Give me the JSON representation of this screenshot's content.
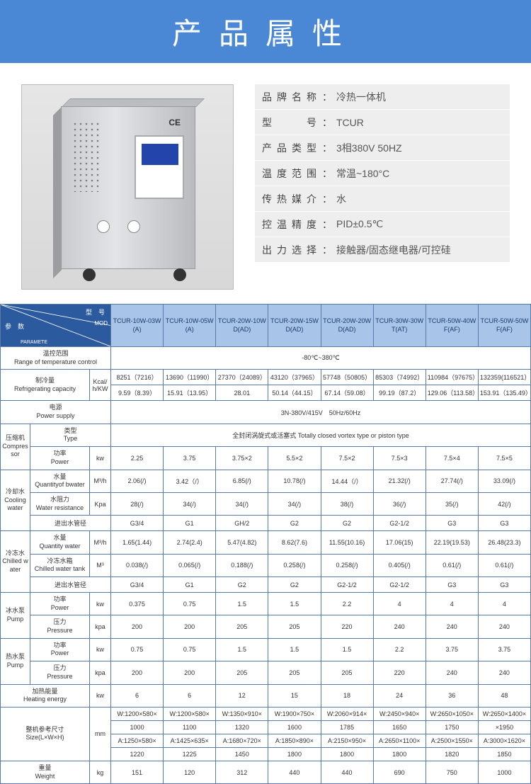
{
  "header": {
    "title": "产品属性"
  },
  "attributes": [
    {
      "label": "品牌名称",
      "value": "冷热一体机"
    },
    {
      "label": "型　　号",
      "value": "TCUR"
    },
    {
      "label": "产品类型",
      "value": "3相380V 50HZ"
    },
    {
      "label": "温度范围",
      "value": "常温~180°C"
    },
    {
      "label": "传热媒介",
      "value": "水"
    },
    {
      "label": "控温精度",
      "value": "PID±0.5℃"
    },
    {
      "label": "出力选择",
      "value": "接触器/固态继电器/可控硅"
    }
  ],
  "spec": {
    "header_labels": {
      "top": "型　号",
      "mod": "MOD",
      "left": "参　数",
      "param": "PARAMETE"
    },
    "models": [
      "TCUR-10W-03W(A)",
      "TCUR-10W-05W(A)",
      "TCUR-20W-10WD(AD)",
      "TCUR-20W-15WD(AD)",
      "TCUR-20W-20WD(AD)",
      "TCUR-30W-30WT(AT)",
      "TCUR-50W-40WF(AF)",
      "TCUR-50W-50WF(AF)"
    ],
    "temp_range": {
      "l1": "温控范围",
      "l2": "Range of temperature control",
      "value": "-80℃~380℃"
    },
    "refrig": {
      "l1": "制冷量",
      "l2": "Refrigerating capacity",
      "unit": "Kcal/h/KW",
      "r1": [
        "8251（7216）",
        "13690（11990）",
        "27370（24089）",
        "43120（37965）",
        "57748（50805）",
        "85303（74992）",
        "110984（97675）",
        "132359(116521）"
      ],
      "r2": [
        "9.59（8.39）",
        "15.91（13.95）",
        "28.01",
        "50.14（44.15）",
        "67.14（59.08）",
        "99.19（87.2）",
        "129.06（113.58）",
        "153.91（135.49）"
      ]
    },
    "power": {
      "l1": "电源",
      "l2": "Power supply",
      "value": "3N-380V/415V　50Hz/60Hz"
    },
    "compressor": {
      "l1": "压缩机",
      "l2": "Compressor",
      "type_cn": "类型",
      "type_en": "Type",
      "type_value": "全封闭涡旋式或活塞式 Totally closed vortex type or piston type",
      "pw_cn": "功率",
      "pw_en": "Power",
      "pw_unit": "kw",
      "pw": [
        "2.25",
        "3.75",
        "3.75×2",
        "5.5×2",
        "7.5×2",
        "7.5×3",
        "7.5×4",
        "7.5×5"
      ]
    },
    "cooling": {
      "l1": "冷却水",
      "l2": "Cooling water",
      "qty_cn": "水量",
      "qty_en": "Quantityof bwater",
      "qty_unit": "M³/h",
      "qty": [
        "2.06(/)",
        "3.42（/）",
        "6.85(/)",
        "10.78(/)",
        "14.44（/）",
        "21.32(/)",
        "27.74(/)",
        "33.09(/)"
      ],
      "res_cn": "水阻力",
      "res_en": "Water resistance",
      "res_unit": "Kpa",
      "res": [
        "28(/)",
        "34(/)",
        "34(/)",
        "34(/)",
        "38(/)",
        "36(/)",
        "35(/)",
        "42(/)"
      ],
      "pipe_cn": "进出水管径",
      "pipe": [
        "G3/4",
        "G1",
        "GH/2",
        "G2",
        "G2",
        "G2-1/2",
        "G3",
        "G3"
      ]
    },
    "chilled": {
      "l1": "冷冻水",
      "l2": "Chilled water",
      "qty_cn": "水量",
      "qty_en": "Quantity water",
      "qty_unit": "M³/h",
      "qty": [
        "1.65(1.44)",
        "2.74(2.4)",
        "5.47(4.82)",
        "8.62(7.6)",
        "11.55(10.16)",
        "17.06(15)",
        "22.19(19.53)",
        "26.48(23.3)"
      ],
      "tank_cn": "冷冻水箱",
      "tank_en": "Chilled water tank",
      "tank_unit": "M³",
      "tank": [
        "0.038(/)",
        "0.065(/)",
        "0.188(/)",
        "0.258(/)",
        "0.258(/)",
        "0.405(/)",
        "0.61(/)",
        "0.61(/)"
      ],
      "pipe_cn": "进出水管径",
      "pipe": [
        "G3/4",
        "G1",
        "G2",
        "G2",
        "G2-1/2",
        "G2-1/2",
        "G3",
        "G3"
      ]
    },
    "cold_pump": {
      "l1": "冰水泵",
      "l2": "Pump",
      "pw_cn": "功率",
      "pw_en": "Power",
      "pw_unit": "kw",
      "pw": [
        "0.375",
        "0.75",
        "1.5",
        "1.5",
        "2.2",
        "4",
        "4",
        "4"
      ],
      "pr_cn": "压力",
      "pr_en": "Pressure",
      "pr_unit": "kpa",
      "pr": [
        "200",
        "200",
        "205",
        "205",
        "220",
        "240",
        "240",
        "240"
      ]
    },
    "hot_pump": {
      "l1": "热水泵",
      "l2": "Pump",
      "pw_cn": "功率",
      "pw_en": "Power",
      "pw_unit": "kw",
      "pw": [
        "0.75",
        "0.75",
        "1.5",
        "1.5",
        "1.5",
        "2.2",
        "3.75",
        "3.75"
      ],
      "pr_cn": "压力",
      "pr_en": "Pressure",
      "pr_unit": "kpa",
      "pr": [
        "200",
        "200",
        "205",
        "205",
        "205",
        "220",
        "240",
        "240"
      ]
    },
    "heat": {
      "l1": "加热能量",
      "l2": "Heating energy",
      "unit": "kw",
      "v": [
        "6",
        "6",
        "12",
        "15",
        "18",
        "24",
        "36",
        "48"
      ]
    },
    "size": {
      "l1": "整机参考尺寸",
      "l2": "Size(L×W×H)",
      "unit": "mm",
      "r1": [
        "W:1200×580×",
        "W:1200×580×",
        "W:1350×910×",
        "W:1900×750×",
        "W:2060×914×",
        "W:2450×940×",
        "W:2650×1050×",
        "W:2650×1400×"
      ],
      "r2": [
        "1000",
        "1100",
        "1320",
        "1600",
        "1785",
        "1650",
        "1750",
        "×1950"
      ],
      "r3": [
        "A:1250×580×",
        "A:1425×635×",
        "A:1680×720×",
        "A:1850×890×",
        "A:2150×950×",
        "A:2650×1100×",
        "A:2500×1550×",
        "A:3000×1620×"
      ],
      "r4": [
        "1220",
        "1225",
        "1450",
        "1800",
        "1800",
        "1800",
        "1820",
        "1850"
      ]
    },
    "weight": {
      "l1": "重量",
      "l2": "Weight",
      "unit": "kg",
      "v": [
        "151",
        "120",
        "312",
        "440",
        "440",
        "690",
        "750",
        "1000"
      ]
    }
  },
  "colors": {
    "banner": "#4a87d4",
    "th_dark": "#2b5a9e",
    "th_light": "#a8c4e8",
    "border": "#5a7ba8",
    "attr_bg": "#eeeeee"
  }
}
